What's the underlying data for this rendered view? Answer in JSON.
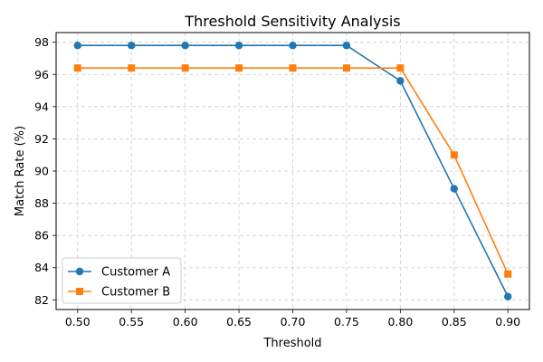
{
  "chart_data": {
    "type": "line",
    "title": "Threshold Sensitivity Analysis",
    "xlabel": "Threshold",
    "ylabel": "Match Rate (%)",
    "x": [
      "0.50",
      "0.55",
      "0.60",
      "0.65",
      "0.70",
      "0.75",
      "0.80",
      "0.85",
      "0.90"
    ],
    "x_values": [
      0.5,
      0.55,
      0.6,
      0.65,
      0.7,
      0.75,
      0.8,
      0.85,
      0.9
    ],
    "xlim": [
      0.48,
      0.92
    ],
    "ylim": [
      81.4,
      98.6
    ],
    "yticks": [
      "82",
      "84",
      "86",
      "88",
      "90",
      "92",
      "94",
      "96",
      "98"
    ],
    "ytick_values": [
      82,
      84,
      86,
      88,
      90,
      92,
      94,
      96,
      98
    ],
    "grid": true,
    "legend_position": "lower-left",
    "series": [
      {
        "name": "Customer A",
        "color": "#1f77b4",
        "marker": "circle",
        "values": [
          97.8,
          97.8,
          97.8,
          97.8,
          97.8,
          97.8,
          95.6,
          88.9,
          82.2
        ]
      },
      {
        "name": "Customer B",
        "color": "#ff7f0e",
        "marker": "square",
        "values": [
          96.4,
          96.4,
          96.4,
          96.4,
          96.4,
          96.4,
          96.4,
          91.0,
          83.6
        ]
      }
    ]
  }
}
